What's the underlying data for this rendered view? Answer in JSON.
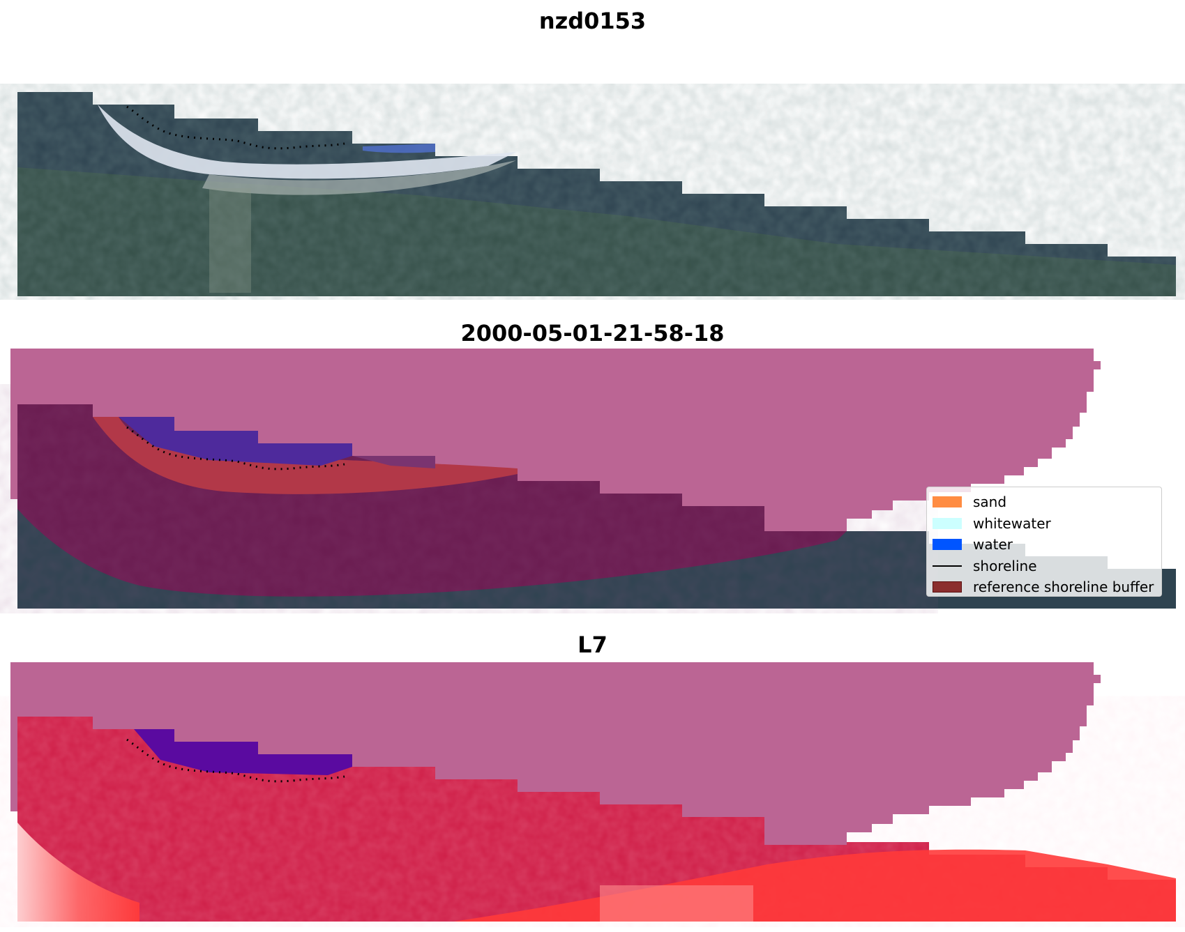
{
  "panels": [
    {
      "title": "nzd0153"
    },
    {
      "title": "2000-05-01-21-58-18"
    },
    {
      "title": "L7"
    }
  ],
  "legend": {
    "items": [
      {
        "label": "sand",
        "kind": "patch",
        "color": "#ff8c42",
        "edge": ""
      },
      {
        "label": "whitewater",
        "kind": "patch",
        "color": "#ccffff",
        "edge": ""
      },
      {
        "label": "water",
        "kind": "patch",
        "color": "#0055ff",
        "edge": ""
      },
      {
        "label": "shoreline",
        "kind": "line",
        "color": "#000000",
        "edge": ""
      },
      {
        "label": "reference shoreline buffer",
        "kind": "patch",
        "color": "#8b2e2e",
        "edge": "#5a1010"
      }
    ]
  },
  "colors": {
    "land": "#2e4350",
    "beach": "#dfe6f0",
    "water_blue": "#4f6fc8",
    "no_data_mask": "#bb6594",
    "buffer": "#6a1c50",
    "sand_class": "#b23848",
    "water_class": "#4e2a9c",
    "nir_red": "#cf1e47",
    "nir_bright": "#ff3a3a"
  }
}
